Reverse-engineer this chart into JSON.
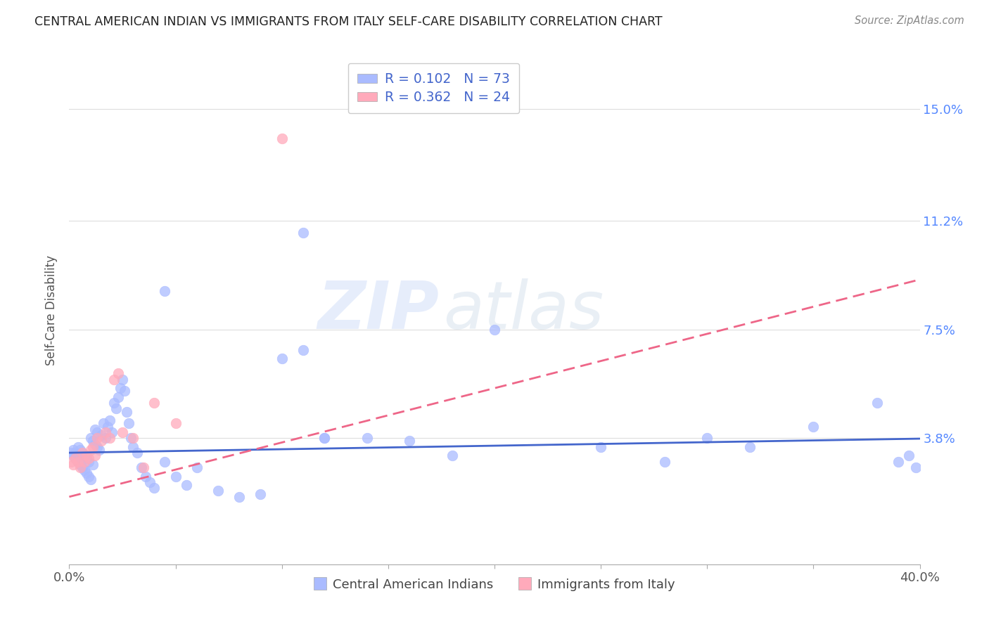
{
  "title": "CENTRAL AMERICAN INDIAN VS IMMIGRANTS FROM ITALY SELF-CARE DISABILITY CORRELATION CHART",
  "source": "Source: ZipAtlas.com",
  "ylabel": "Self-Care Disability",
  "yticks": [
    "15.0%",
    "11.2%",
    "7.5%",
    "3.8%"
  ],
  "ytick_vals": [
    0.15,
    0.112,
    0.075,
    0.038
  ],
  "xlim": [
    0.0,
    0.4
  ],
  "ylim": [
    -0.005,
    0.168
  ],
  "legend_r1": "0.102",
  "legend_n1": "73",
  "legend_r2": "0.362",
  "legend_n2": "24",
  "color_blue": "#aabbff",
  "color_pink": "#ffaabb",
  "color_line_blue": "#4466cc",
  "color_line_pink": "#ee6688",
  "blue_intercept": 0.033,
  "blue_slope": 0.012,
  "pink_intercept": 0.018,
  "pink_slope": 0.185,
  "blue_x": [
    0.001,
    0.002,
    0.002,
    0.003,
    0.003,
    0.004,
    0.004,
    0.005,
    0.005,
    0.006,
    0.006,
    0.007,
    0.007,
    0.008,
    0.008,
    0.009,
    0.009,
    0.01,
    0.01,
    0.011,
    0.011,
    0.012,
    0.012,
    0.013,
    0.013,
    0.014,
    0.015,
    0.016,
    0.017,
    0.018,
    0.019,
    0.02,
    0.021,
    0.022,
    0.023,
    0.024,
    0.025,
    0.026,
    0.027,
    0.028,
    0.029,
    0.03,
    0.032,
    0.034,
    0.036,
    0.038,
    0.04,
    0.045,
    0.05,
    0.055,
    0.06,
    0.07,
    0.08,
    0.09,
    0.1,
    0.11,
    0.12,
    0.14,
    0.16,
    0.18,
    0.2,
    0.25,
    0.28,
    0.3,
    0.32,
    0.35,
    0.38,
    0.39,
    0.395,
    0.398,
    0.045,
    0.11,
    0.12
  ],
  "blue_y": [
    0.033,
    0.032,
    0.034,
    0.031,
    0.033,
    0.03,
    0.035,
    0.029,
    0.034,
    0.028,
    0.033,
    0.027,
    0.032,
    0.026,
    0.031,
    0.025,
    0.03,
    0.038,
    0.024,
    0.037,
    0.029,
    0.036,
    0.041,
    0.035,
    0.04,
    0.034,
    0.039,
    0.043,
    0.038,
    0.042,
    0.044,
    0.04,
    0.05,
    0.048,
    0.052,
    0.055,
    0.058,
    0.054,
    0.047,
    0.043,
    0.038,
    0.035,
    0.033,
    0.028,
    0.025,
    0.023,
    0.021,
    0.03,
    0.025,
    0.022,
    0.028,
    0.02,
    0.018,
    0.019,
    0.065,
    0.108,
    0.038,
    0.038,
    0.037,
    0.032,
    0.075,
    0.035,
    0.03,
    0.038,
    0.035,
    0.042,
    0.05,
    0.03,
    0.032,
    0.028,
    0.088,
    0.068,
    0.038
  ],
  "pink_x": [
    0.001,
    0.002,
    0.003,
    0.004,
    0.005,
    0.006,
    0.007,
    0.008,
    0.009,
    0.01,
    0.011,
    0.012,
    0.013,
    0.015,
    0.017,
    0.019,
    0.021,
    0.023,
    0.025,
    0.03,
    0.035,
    0.04,
    0.05,
    0.1
  ],
  "pink_y": [
    0.03,
    0.029,
    0.031,
    0.03,
    0.028,
    0.033,
    0.03,
    0.032,
    0.031,
    0.034,
    0.035,
    0.032,
    0.038,
    0.037,
    0.04,
    0.038,
    0.058,
    0.06,
    0.04,
    0.038,
    0.028,
    0.05,
    0.043,
    0.14
  ]
}
